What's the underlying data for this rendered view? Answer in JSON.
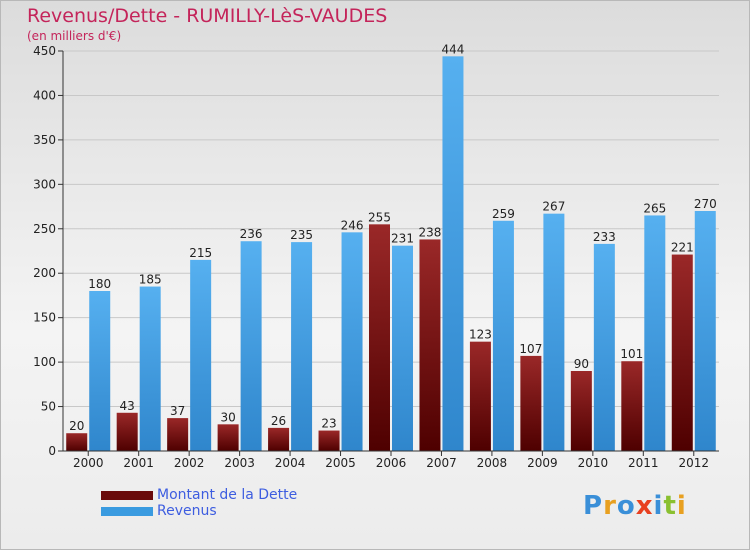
{
  "title": "Revenus/Dette - RUMILLY-LèS-VAUDES",
  "subtitle": "(en milliers d'€)",
  "logo": "Proxiti",
  "colors": {
    "dette": "#7a1010",
    "revenus": "#3a9be0",
    "title": "#c4245a",
    "legend_text": "#3d5de0"
  },
  "chart_data": {
    "type": "bar",
    "title": "Revenus/Dette - RUMILLY-LèS-VAUDES",
    "ylabel": "(en milliers d'€)",
    "categories": [
      "2000",
      "2001",
      "2002",
      "2003",
      "2004",
      "2005",
      "2006",
      "2007",
      "2008",
      "2009",
      "2010",
      "2011",
      "2012"
    ],
    "series": [
      {
        "name": "Montant de la Dette",
        "values": [
          20,
          43,
          37,
          30,
          26,
          23,
          255,
          238,
          123,
          107,
          90,
          101,
          221
        ]
      },
      {
        "name": "Revenus",
        "values": [
          180,
          185,
          215,
          236,
          235,
          246,
          231,
          444,
          259,
          267,
          233,
          265,
          270
        ]
      }
    ],
    "ylim": [
      0,
      450
    ],
    "yticks": [
      0,
      50,
      100,
      150,
      200,
      250,
      300,
      350,
      400,
      450
    ],
    "grid": true,
    "legend": "bottom-left"
  }
}
